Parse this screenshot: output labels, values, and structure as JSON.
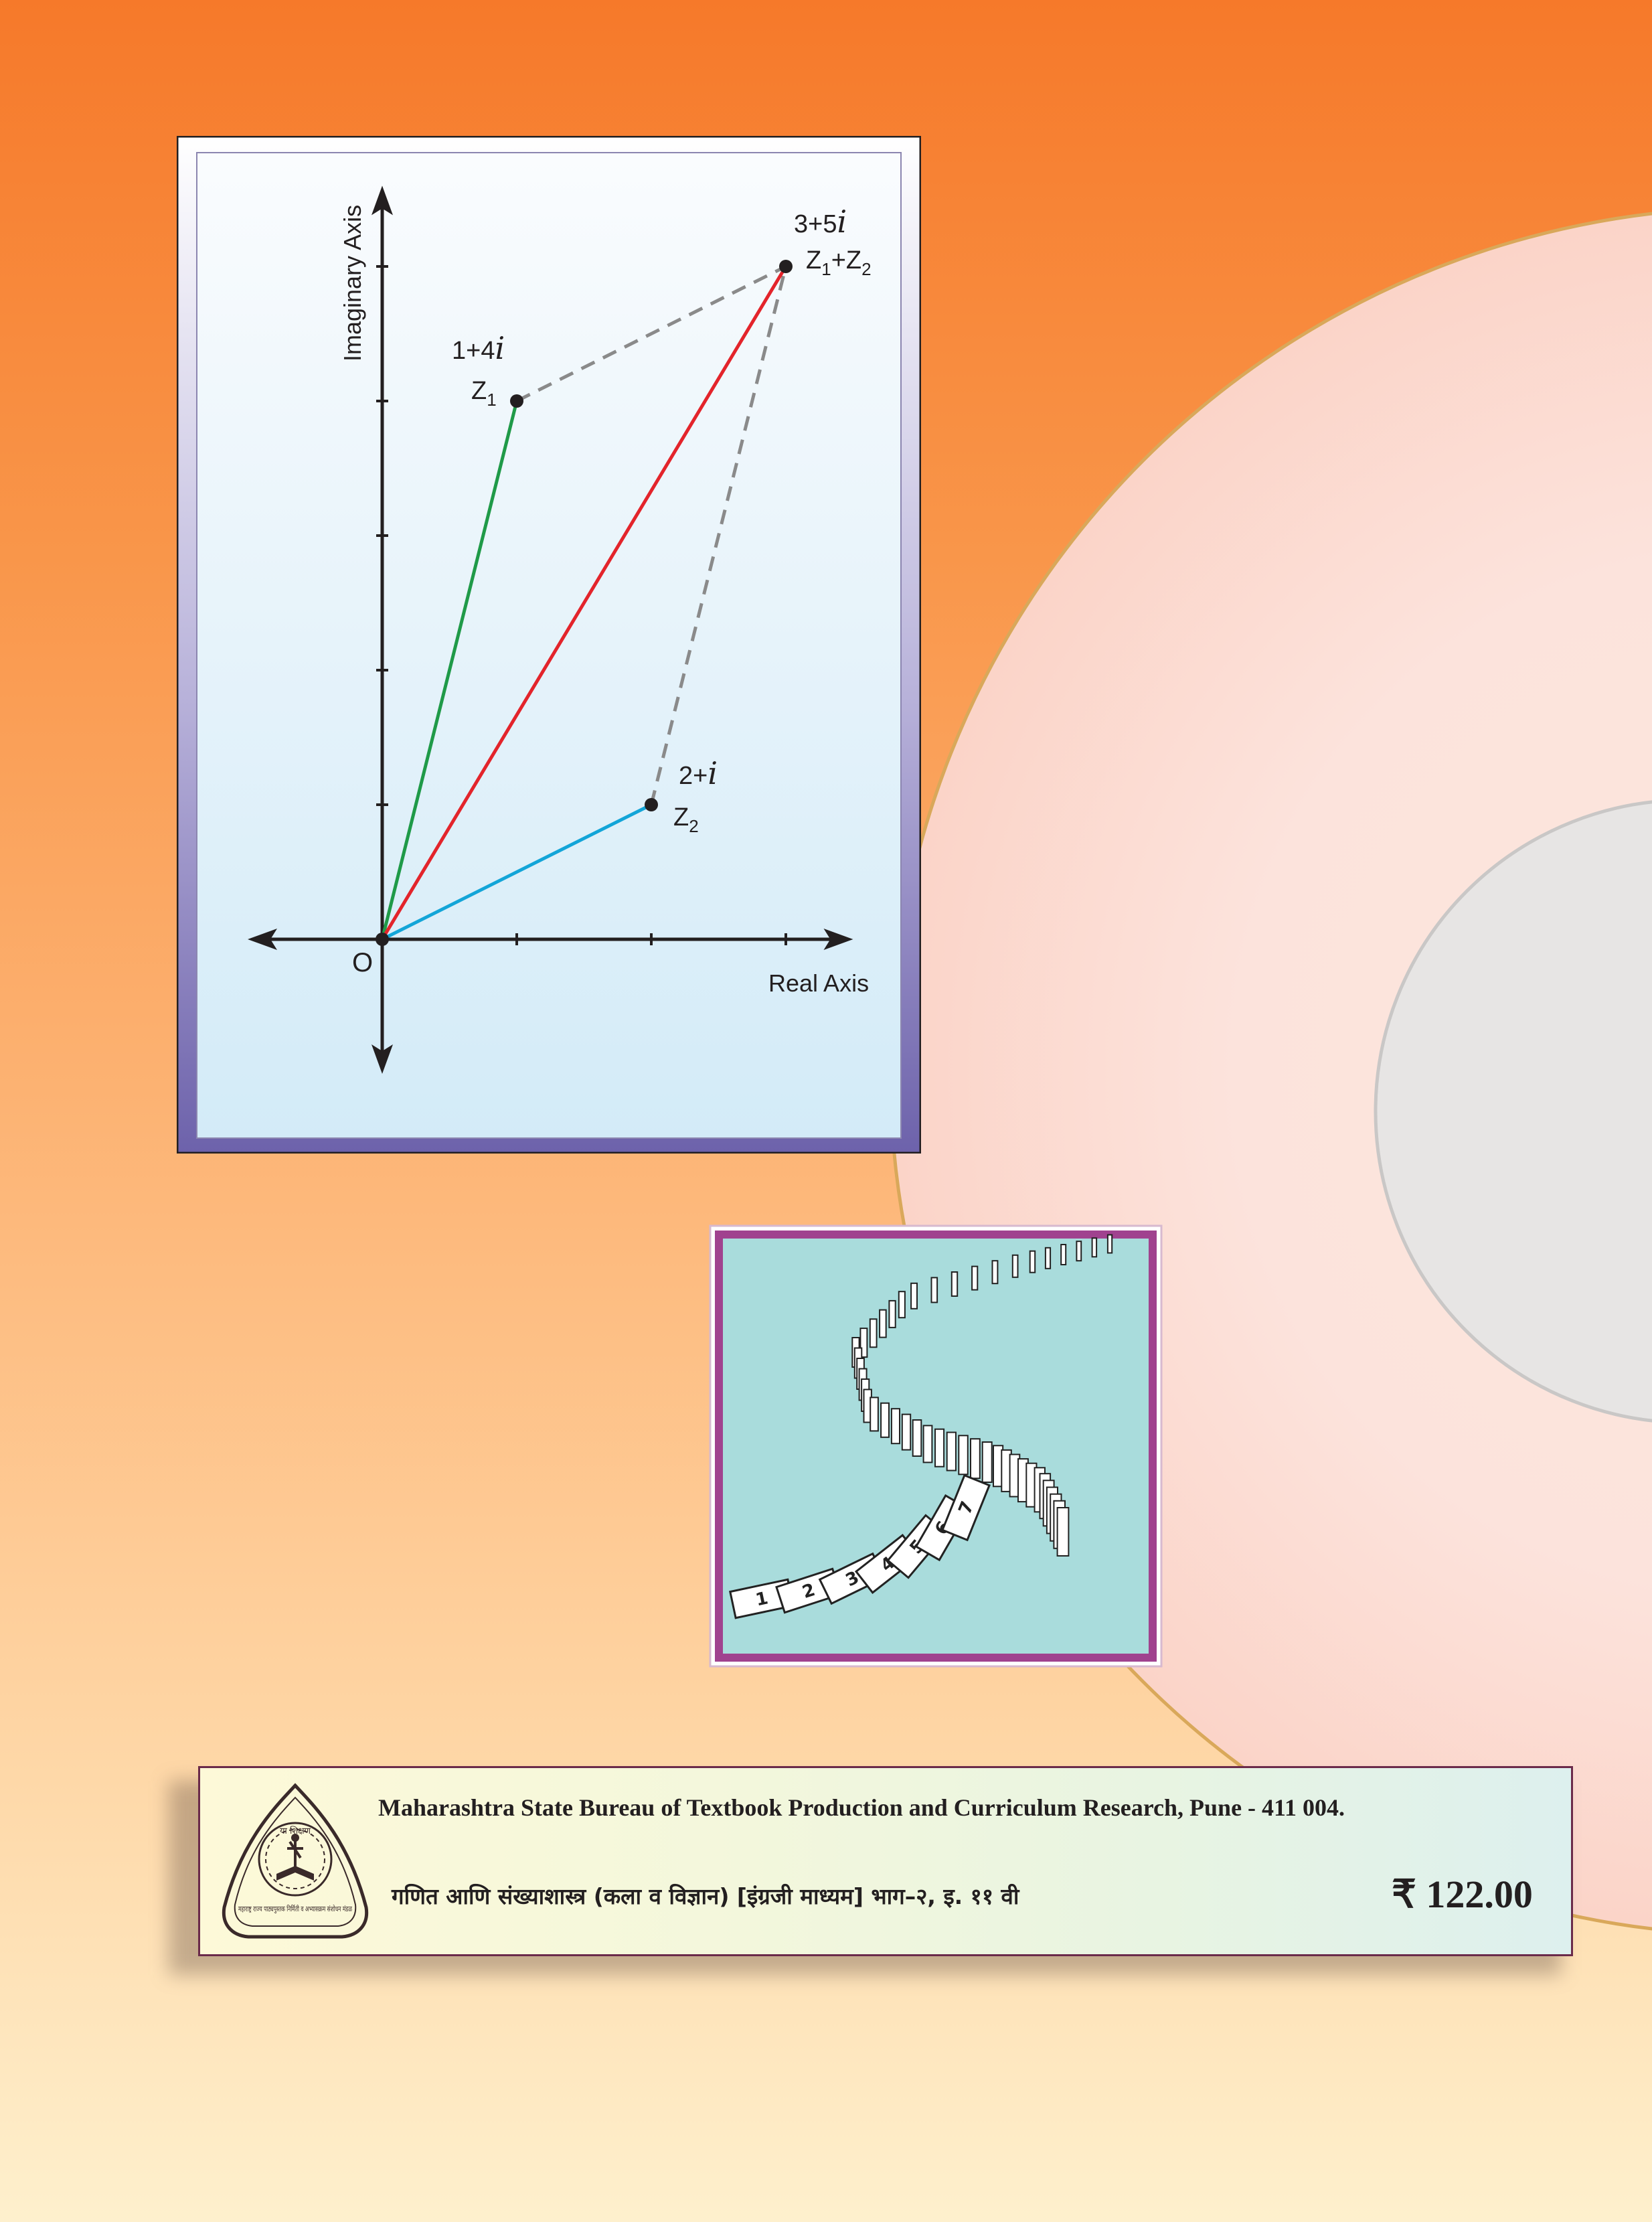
{
  "colors": {
    "bg_top": "#f6792a",
    "bg_bottom": "#fef0cd",
    "frame_border": "#7b6fb0",
    "axis": "#231f20",
    "z1_line": "#1f9a48",
    "z2_line": "#13a5d8",
    "sum_line": "#e3242b",
    "dashed": "#8a8a8a",
    "domino_bg": "#a9dcdc",
    "domino_frame": "#a0428f"
  },
  "figure": {
    "y_axis_label": "Imaginary Axis",
    "x_axis_label": "Real Axis",
    "origin_label": "O",
    "z1": {
      "value_prefix": "1+4",
      "value_i": "i",
      "name": "Z",
      "sub": "1"
    },
    "z2": {
      "value_prefix": "2+",
      "value_i": "i",
      "name": "Z",
      "sub": "2"
    },
    "sum": {
      "value_prefix": "3+5",
      "value_i": "i",
      "name_a": "Z",
      "sub_a": "1",
      "plus": "+",
      "name_b": "Z",
      "sub_b": "2"
    }
  },
  "chart_data": {
    "type": "scatter",
    "x": [
      1,
      2,
      3
    ],
    "y": [
      4,
      1,
      5
    ],
    "xlabel": "Real Axis",
    "ylabel": "Imaginary Axis",
    "xlim": [
      -1,
      3.5
    ],
    "ylim": [
      -1,
      5.6
    ],
    "grid": false
  },
  "domino_numbers": [
    "1",
    "2",
    "3",
    "4",
    "5",
    "6",
    "7"
  ],
  "publisher": {
    "name": "Maharashtra State Bureau of Textbook Production and Curriculum Research, Pune - 411 004.",
    "book_title": "गणित आणि संख्याशास्त्र (कला व विज्ञान) [इंग्रजी माध्यम] भाग–२, इ. ११ वी",
    "price": "₹ 122.00",
    "logo_text_top": "या शिक्षण",
    "logo_text_ring": "महाराष्ट्र राज्य पाठ्यपुस्तक निर्मिती व अभ्यासक्रम संशोधन मंडळ"
  }
}
